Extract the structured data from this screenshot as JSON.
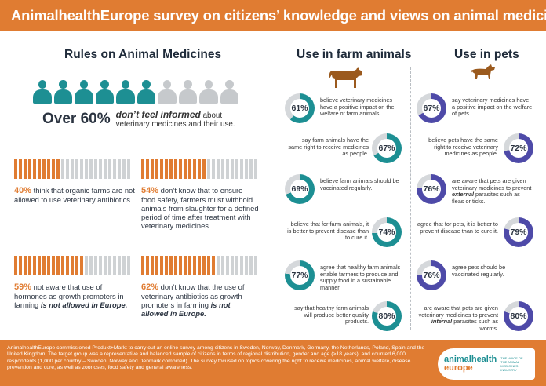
{
  "header": {
    "title": "AnimalhealthEurope survey on citizens’ knowledge and views on animal medicines"
  },
  "rules": {
    "title": "Rules on Animal Medicines",
    "people_total": 10,
    "people_highlighted": 6,
    "over_big": "Over 60%",
    "over_emph": "don’t feel informed",
    "over_rest": "about veterinary medicines and their use.",
    "stats": [
      {
        "pct": "40%",
        "text": "think that organic farms are not allowed to use veterinary antibiotics.",
        "italic": "",
        "value": 40
      },
      {
        "pct": "54%",
        "text": "don’t know that to ensure food safety, farmers must withhold animals from slaughter for a defined period of time after treatment with veterinary medicines.",
        "italic": "",
        "value": 54
      },
      {
        "pct": "59%",
        "text": "not aware that use of hormones as growth promoters in farming",
        "italic": "is not allowed in Europe.",
        "value": 59
      },
      {
        "pct": "62%",
        "text": "don’t know that the use of veterinary antibiotics as growth promoters in farming",
        "italic": "is not allowed in Europe.",
        "value": 62
      }
    ]
  },
  "farm": {
    "title": "Use in farm animals",
    "color": "#1d8f93",
    "items": [
      {
        "value": 61,
        "label": "61%",
        "text": "believe veterinary medicines have a positive impact on the welfare of farm animals."
      },
      {
        "value": 67,
        "label": "67%",
        "text": "say farm animals have the same right to receive medicines as people."
      },
      {
        "value": 69,
        "label": "69%",
        "text": "believe farm animals should be vaccinated regularly."
      },
      {
        "value": 74,
        "label": "74%",
        "text": "believe that for farm animals, it is better to prevent disease than to cure it."
      },
      {
        "value": 77,
        "label": "77%",
        "text": "agree that healthy farm animals enable farmers to produce and supply food in a sustainable manner."
      },
      {
        "value": 80,
        "label": "80%",
        "text": "say that healthy farm animals will produce better quality products."
      }
    ]
  },
  "pets": {
    "title": "Use in pets",
    "color": "#4e4aa8",
    "items": [
      {
        "value": 67,
        "label": "67%",
        "text": "say veterinary medicines have a positive impact on the welfare of pets.",
        "pre": "",
        "italic": "",
        "post": ""
      },
      {
        "value": 72,
        "label": "72%",
        "text": "believe pets have the same right to receive veterinary medicines as people.",
        "pre": "",
        "italic": "",
        "post": ""
      },
      {
        "value": 76,
        "label": "76%",
        "text": "",
        "pre": "are aware that pets are given veterinary medicines to prevent ",
        "italic": "external",
        "post": " parasites such as fleas or ticks."
      },
      {
        "value": 79,
        "label": "79%",
        "text": "agree that for pets, it is better to prevent disease than to cure it.",
        "pre": "",
        "italic": "",
        "post": ""
      },
      {
        "value": 76,
        "label": "76%",
        "text": "agree pets should be vaccinated regularly.",
        "pre": "",
        "italic": "",
        "post": ""
      },
      {
        "value": 80,
        "label": "80%",
        "text": "",
        "pre": "are aware that pets are given veterinary medicines to prevent ",
        "italic": "internal",
        "post": " parasites such as worms."
      }
    ]
  },
  "footer": {
    "text": "AnimalhealthEurope commissioned Produkt+Markt to carry out an online survey among citizens in Sweden, Norway, Denmark, Germany, the Netherlands, Poland, Spain and the United Kingdom. The target group was a representative and balanced sample of citizens in terms of regional distribution, gender and age (>18 years), and counted 6,000 respondents (1,000 per country – Sweden, Norway and Denmark combined). The survey focused on topics covering the right to receive medicines, animal welfare, disease prevention and cure, as well as zoonoses, food safety and general awareness.",
    "logo_a": "animalhealth",
    "logo_b": "europe",
    "logo_sub": "THE VOICE OF THE ANIMAL MEDICINES INDUSTRY"
  },
  "colors": {
    "orange": "#e07c32",
    "teal": "#1d8f93",
    "purple": "#4e4aa8",
    "grey": "#c6c9cc"
  }
}
